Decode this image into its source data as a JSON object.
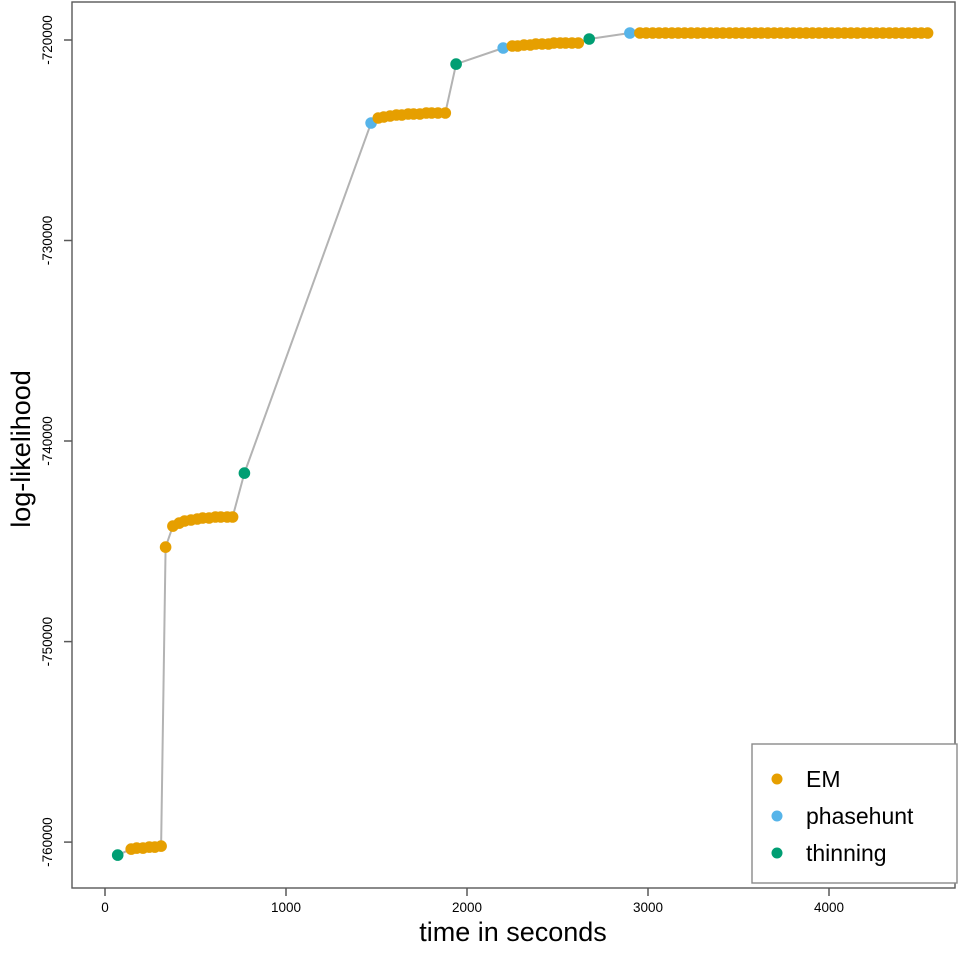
{
  "chart_data": {
    "type": "scatter",
    "title": "",
    "xlabel": "time in seconds",
    "ylabel": "log-likelihood",
    "x_ticks": [
      0,
      1000,
      2000,
      3000,
      4000
    ],
    "y_ticks": [
      -720000,
      -730000,
      -740000,
      -750000,
      -760000
    ],
    "xlim": [
      -180,
      4730
    ],
    "ylim": [
      -762300,
      -718050
    ],
    "grid": false,
    "line_color": "#b3b3b3",
    "axis_color": "#595959",
    "legend": {
      "position": "bottom-right",
      "items": [
        {
          "key": "em",
          "label": "EM",
          "color": "#E69F00"
        },
        {
          "key": "phasehunt",
          "label": "phasehunt",
          "color": "#56B4E9"
        },
        {
          "key": "thinning",
          "label": "thinning",
          "color": "#009E73"
        }
      ]
    },
    "points": [
      [
        70,
        -760650,
        "thinning"
      ],
      [
        145,
        -760350,
        "em"
      ],
      [
        175,
        -760300,
        "em"
      ],
      [
        210,
        -760300,
        "em"
      ],
      [
        245,
        -760250,
        "em"
      ],
      [
        275,
        -760250,
        "em"
      ],
      [
        310,
        -760200,
        "em"
      ],
      [
        335,
        -745290,
        "em"
      ],
      [
        375,
        -744240,
        "em"
      ],
      [
        410,
        -744090,
        "em"
      ],
      [
        440,
        -743990,
        "em"
      ],
      [
        475,
        -743940,
        "em"
      ],
      [
        510,
        -743890,
        "em"
      ],
      [
        540,
        -743840,
        "em"
      ],
      [
        575,
        -743840,
        "em"
      ],
      [
        610,
        -743790,
        "em"
      ],
      [
        640,
        -743790,
        "em"
      ],
      [
        675,
        -743790,
        "em"
      ],
      [
        705,
        -743790,
        "em"
      ],
      [
        770,
        -741600,
        "thinning"
      ],
      [
        1470,
        -724140,
        "phasehunt"
      ],
      [
        1510,
        -723890,
        "em"
      ],
      [
        1540,
        -723840,
        "em"
      ],
      [
        1575,
        -723790,
        "em"
      ],
      [
        1610,
        -723740,
        "em"
      ],
      [
        1640,
        -723740,
        "em"
      ],
      [
        1675,
        -723690,
        "em"
      ],
      [
        1705,
        -723690,
        "em"
      ],
      [
        1740,
        -723690,
        "em"
      ],
      [
        1775,
        -723640,
        "em"
      ],
      [
        1805,
        -723640,
        "em"
      ],
      [
        1840,
        -723640,
        "em"
      ],
      [
        1880,
        -723640,
        "em"
      ],
      [
        1940,
        -721200,
        "thinning"
      ],
      [
        2200,
        -720400,
        "phasehunt"
      ],
      [
        2250,
        -720300,
        "em"
      ],
      [
        2280,
        -720300,
        "em"
      ],
      [
        2315,
        -720250,
        "em"
      ],
      [
        2350,
        -720250,
        "em"
      ],
      [
        2380,
        -720200,
        "em"
      ],
      [
        2415,
        -720200,
        "em"
      ],
      [
        2450,
        -720200,
        "em"
      ],
      [
        2480,
        -720150,
        "em"
      ],
      [
        2515,
        -720150,
        "em"
      ],
      [
        2545,
        -720150,
        "em"
      ],
      [
        2580,
        -720150,
        "em"
      ],
      [
        2615,
        -720150,
        "em"
      ],
      [
        2675,
        -719950,
        "thinning"
      ],
      [
        2900,
        -719650,
        "phasehunt"
      ],
      [
        2955,
        -719650,
        "em"
      ],
      [
        2990,
        -719650,
        "em"
      ],
      [
        3026,
        -719650,
        "em"
      ],
      [
        3061,
        -719650,
        "em"
      ],
      [
        3096,
        -719650,
        "em"
      ],
      [
        3132,
        -719650,
        "em"
      ],
      [
        3167,
        -719650,
        "em"
      ],
      [
        3202,
        -719650,
        "em"
      ],
      [
        3238,
        -719650,
        "em"
      ],
      [
        3273,
        -719650,
        "em"
      ],
      [
        3308,
        -719650,
        "em"
      ],
      [
        3344,
        -719650,
        "em"
      ],
      [
        3379,
        -719650,
        "em"
      ],
      [
        3414,
        -719650,
        "em"
      ],
      [
        3450,
        -719650,
        "em"
      ],
      [
        3485,
        -719650,
        "em"
      ],
      [
        3520,
        -719650,
        "em"
      ],
      [
        3556,
        -719650,
        "em"
      ],
      [
        3591,
        -719650,
        "em"
      ],
      [
        3626,
        -719650,
        "em"
      ],
      [
        3662,
        -719650,
        "em"
      ],
      [
        3697,
        -719650,
        "em"
      ],
      [
        3732,
        -719650,
        "em"
      ],
      [
        3768,
        -719650,
        "em"
      ],
      [
        3803,
        -719650,
        "em"
      ],
      [
        3838,
        -719650,
        "em"
      ],
      [
        3874,
        -719650,
        "em"
      ],
      [
        3909,
        -719650,
        "em"
      ],
      [
        3944,
        -719650,
        "em"
      ],
      [
        3980,
        -719650,
        "em"
      ],
      [
        4015,
        -719650,
        "em"
      ],
      [
        4050,
        -719650,
        "em"
      ],
      [
        4086,
        -719650,
        "em"
      ],
      [
        4121,
        -719650,
        "em"
      ],
      [
        4156,
        -719650,
        "em"
      ],
      [
        4192,
        -719650,
        "em"
      ],
      [
        4227,
        -719650,
        "em"
      ],
      [
        4262,
        -719650,
        "em"
      ],
      [
        4298,
        -719650,
        "em"
      ],
      [
        4333,
        -719650,
        "em"
      ],
      [
        4368,
        -719650,
        "em"
      ],
      [
        4404,
        -719650,
        "em"
      ],
      [
        4439,
        -719650,
        "em"
      ],
      [
        4474,
        -719650,
        "em"
      ],
      [
        4510,
        -719650,
        "em"
      ],
      [
        4545,
        -719650,
        "em"
      ]
    ]
  }
}
